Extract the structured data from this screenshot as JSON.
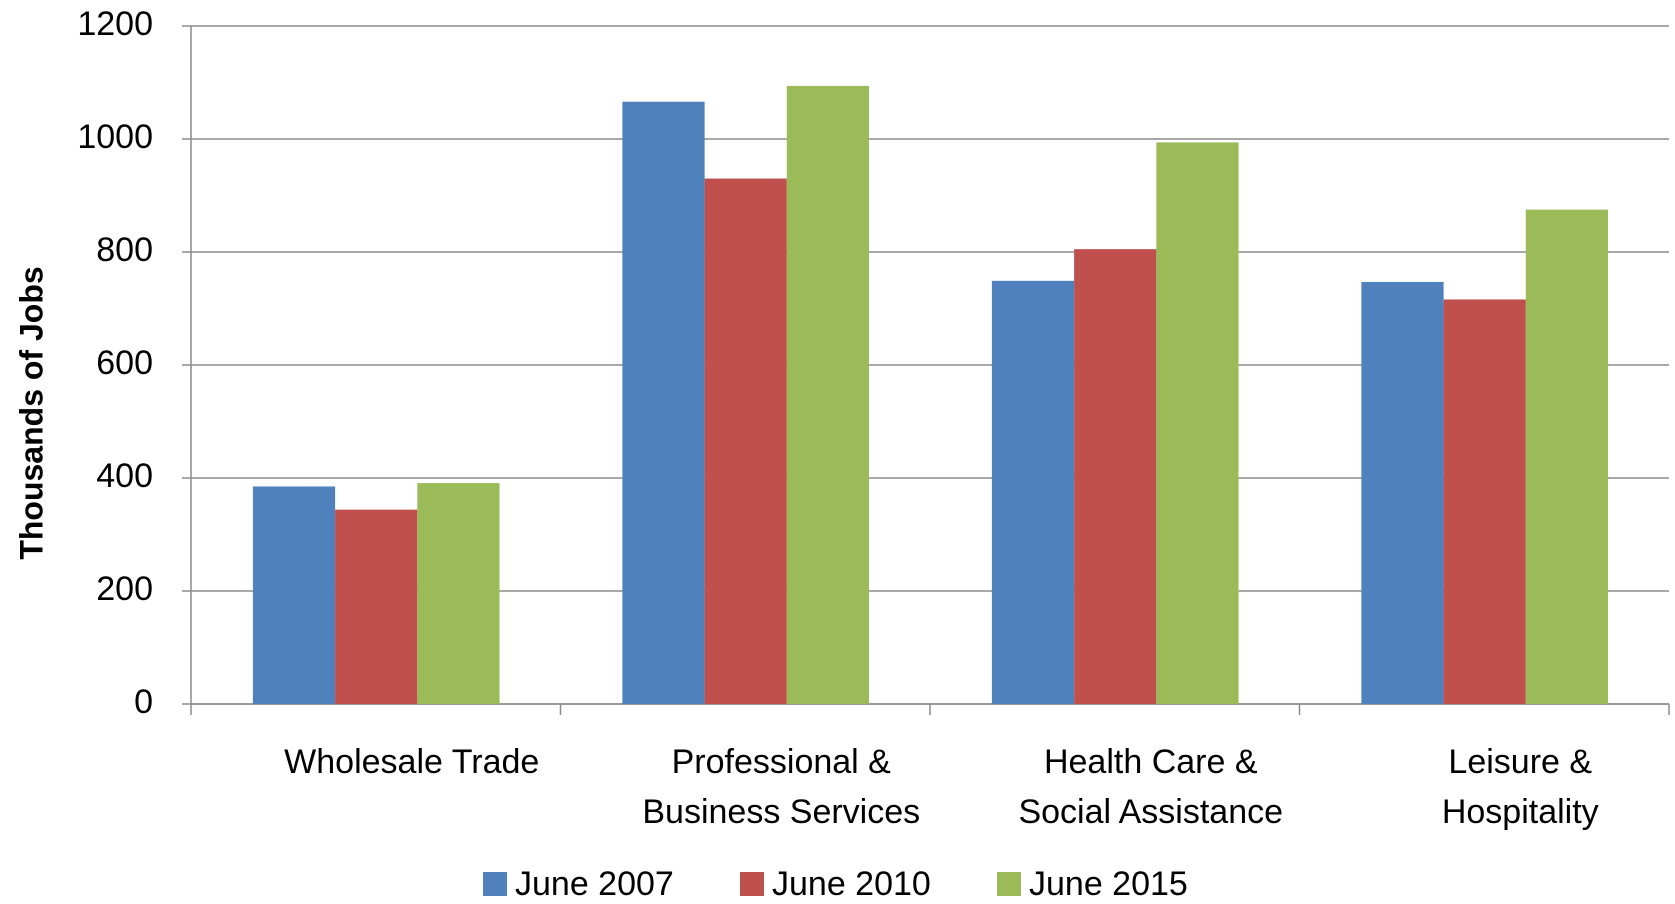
{
  "chart_data": {
    "type": "bar",
    "y_axis_label": "Thousands of Jobs",
    "categories": [
      "Wholesale Trade",
      "Professional &\nBusiness Services",
      "Health Care &\nSocial Assistance",
      "Leisure &\nHospitality"
    ],
    "series": [
      {
        "name": "June 2007",
        "color": "#4f81bd",
        "values": [
          385,
          1066,
          749,
          747
        ]
      },
      {
        "name": "June 2010",
        "color": "#c0504d",
        "values": [
          344,
          930,
          805,
          716
        ]
      },
      {
        "name": "June 2015",
        "color": "#9bbb59",
        "values": [
          391,
          1094,
          994,
          875
        ]
      }
    ],
    "ylim": [
      0,
      1200
    ],
    "yticks": [
      0,
      200,
      400,
      600,
      800,
      1000,
      1200
    ],
    "grid": true
  }
}
